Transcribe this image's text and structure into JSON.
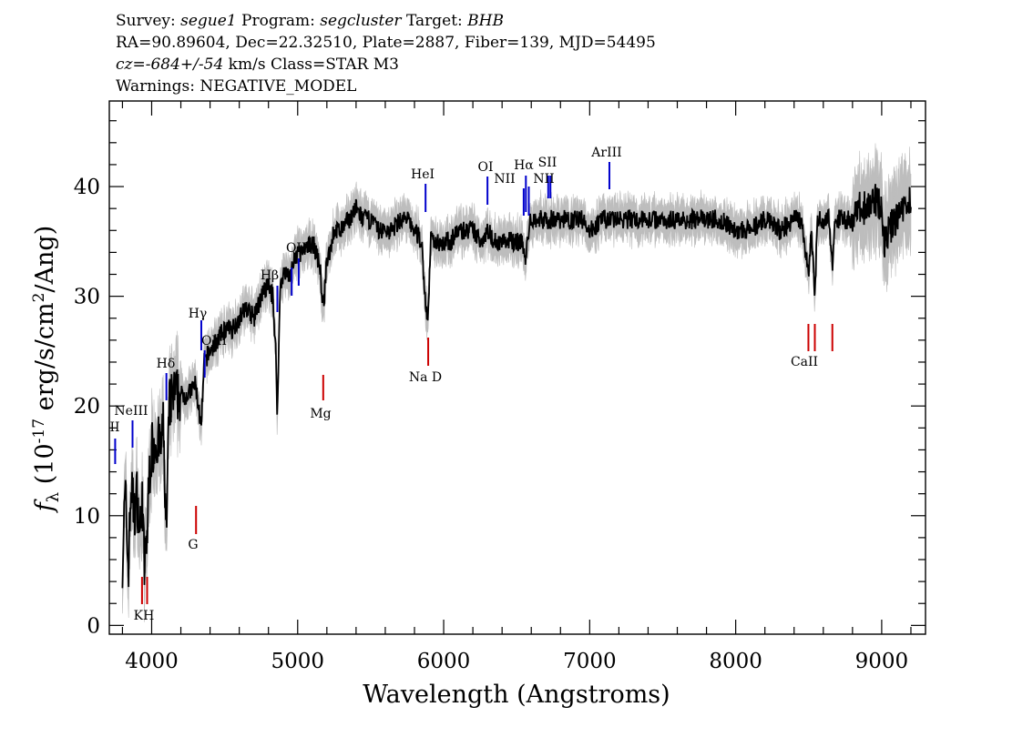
{
  "header": {
    "line1": [
      {
        "text": "Survey: ",
        "italic": false
      },
      {
        "text": "segue1",
        "italic": true
      },
      {
        "text": " Program: ",
        "italic": false
      },
      {
        "text": "segcluster",
        "italic": true
      },
      {
        "text": " Target: ",
        "italic": false
      },
      {
        "text": "BHB",
        "italic": true
      }
    ],
    "line2": "RA=90.89604, Dec=22.32510, Plate=2887, Fiber=139, MJD=54495",
    "line3": [
      {
        "text": "cz=-684+/-54",
        "italic": true
      },
      {
        "text": " km/s Class=STAR M3",
        "italic": false
      }
    ],
    "line4": "Warnings: NEGATIVE_MODEL"
  },
  "chart_data": {
    "type": "line",
    "xlabel": "Wavelength (Angstroms)",
    "ylabel_parts": {
      "f": "f",
      "sub": "λ",
      "pre": "(10",
      "exp1": "-17",
      "mid": " erg/s/cm",
      "exp2": "2",
      "post": "/Ang)"
    },
    "xlim": [
      3710,
      9300
    ],
    "ylim": [
      -0.8,
      47.8
    ],
    "xticks_major": [
      4000,
      5000,
      6000,
      7000,
      8000,
      9000
    ],
    "xtick_labels": [
      "4000",
      "5000",
      "6000",
      "7000",
      "8000",
      "9000"
    ],
    "yticks_major": [
      0,
      10,
      20,
      30,
      40
    ],
    "ytick_labels": [
      "0",
      "10",
      "20",
      "30",
      "40"
    ],
    "colors": {
      "flux": "#000000",
      "noise_band": "#bdbdbd",
      "emission": "#0000cc",
      "absorption": "#cc0000"
    },
    "series": [
      {
        "x": [
          3800,
          3820,
          3840,
          3860,
          3880,
          3900,
          3920,
          3935,
          3950,
          3968,
          3985,
          4000,
          4030,
          4060,
          4080,
          4101,
          4120,
          4150,
          4200,
          4250,
          4300,
          4340,
          4360,
          4400,
          4450,
          4500,
          4550,
          4600,
          4650,
          4700,
          4750,
          4800,
          4830,
          4850,
          4861,
          4880,
          4900,
          4950,
          5000,
          5050,
          5100,
          5150,
          5175,
          5200,
          5250,
          5300,
          5350,
          5400,
          5450,
          5500,
          5550,
          5600,
          5650,
          5700,
          5750,
          5800,
          5850,
          5870,
          5893,
          5910,
          5950,
          6000,
          6050,
          6100,
          6150,
          6200,
          6250,
          6300,
          6350,
          6400,
          6450,
          6500,
          6540,
          6563,
          6580,
          6600,
          6650,
          6700,
          6750,
          6800,
          6850,
          6900,
          6950,
          7000,
          7100,
          7200,
          7300,
          7400,
          7500,
          7600,
          7700,
          7800,
          7900,
          8000,
          8100,
          8200,
          8300,
          8400,
          8450,
          8498,
          8520,
          8542,
          8560,
          8600,
          8640,
          8662,
          8680,
          8700,
          8750,
          8800,
          8850,
          8900,
          8950,
          9000,
          9020,
          9050,
          9100,
          9150,
          9180,
          9200
        ],
        "y": [
          6,
          12,
          5,
          13,
          10,
          12,
          8,
          12,
          5,
          8,
          14,
          16,
          17,
          16,
          18,
          8,
          20,
          21,
          21,
          21,
          22,
          18,
          24,
          25,
          26,
          27,
          27,
          28,
          29,
          28,
          30,
          31,
          30,
          25,
          19,
          31,
          32,
          32,
          34,
          34,
          35,
          33,
          29,
          33,
          36,
          36,
          37,
          38,
          37,
          37,
          36,
          36,
          36,
          37,
          37,
          36,
          35,
          30,
          28,
          35,
          35,
          35,
          35,
          36,
          36,
          36,
          35,
          36,
          35,
          35,
          35,
          35,
          35,
          33,
          36,
          37,
          37,
          37,
          37,
          37,
          37,
          37,
          37,
          36,
          37,
          37,
          37,
          37,
          37,
          37,
          37,
          37,
          37,
          36,
          36,
          37,
          36,
          37,
          37,
          32,
          36,
          30,
          37,
          37,
          37,
          33,
          37,
          37,
          37,
          37,
          38,
          38,
          39,
          38,
          35,
          36,
          37,
          38,
          39,
          38
        ]
      }
    ],
    "emission_lines": [
      {
        "label": "HeII",
        "display": "II",
        "x": 3750
      },
      {
        "label": "NeIII",
        "x": 3869
      },
      {
        "label": "Hδ",
        "x": 4101
      },
      {
        "label": "Hγ",
        "x": 4340
      },
      {
        "label": "OIII",
        "x": 4363
      },
      {
        "label": "Hβ",
        "x": 4861
      },
      {
        "label": "OIII",
        "x": 4959
      },
      {
        "label": "OIII",
        "x": 5007
      },
      {
        "label": "HeI",
        "x": 5876
      },
      {
        "label": "OI",
        "x": 6300
      },
      {
        "label": "NII",
        "x": 6548
      },
      {
        "label": "Hα",
        "x": 6563
      },
      {
        "label": "NII",
        "x": 6583
      },
      {
        "label": "SII",
        "x": 6716
      },
      {
        "label": "SII",
        "x": 6731
      },
      {
        "label": "ArIII",
        "x": 7135
      }
    ],
    "absorption_lines": [
      {
        "label": "K",
        "x": 3934
      },
      {
        "label": "H",
        "x": 3969
      },
      {
        "label": "G",
        "x": 4304
      },
      {
        "label": "Mg",
        "x": 5175
      },
      {
        "label": "Na D",
        "x": 5894
      },
      {
        "label": "CaII",
        "x": 8498
      },
      {
        "label": "CaII",
        "x": 8542
      },
      {
        "label": "CaII",
        "x": 8662
      }
    ],
    "emission_label_texts": [
      "II",
      "NeIII",
      "Hδ",
      "Hγ",
      "OIII",
      "Hβ",
      "OIII",
      "HeI",
      "OI",
      "NII",
      "Hα",
      "SII",
      "NII",
      "ArIII"
    ],
    "absorption_label_texts": [
      "KH",
      "G",
      "Mg",
      "Na D",
      "CaII"
    ]
  }
}
